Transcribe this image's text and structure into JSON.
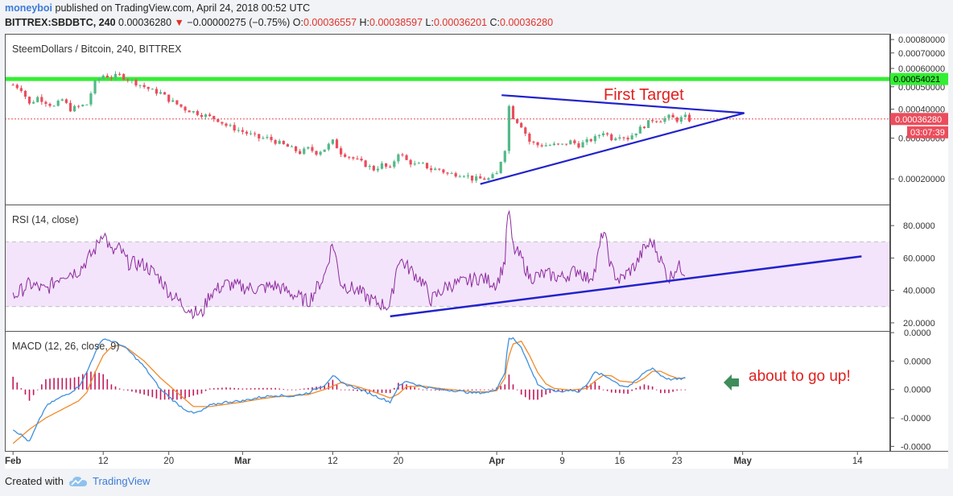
{
  "header": {
    "author": "moneyboi",
    "published_text": "published on TradingView.com, April 24, 2018 00:52 UTC",
    "symbol": "BITTREX:SBDBTC, 240",
    "price": "0.00036280",
    "change_arrow": "▼",
    "change": "−0.00000275 (−0.75%)",
    "o_label": "O:",
    "o_value": "0.00036557",
    "h_label": "H:",
    "h_value": "0.00038597",
    "l_label": "L:",
    "l_value": "0.00036201",
    "c_label": "C:",
    "c_value": "0.00036280"
  },
  "footer": {
    "created_with": "Created with",
    "brand": "TradingView"
  },
  "colors": {
    "up": "#53b987",
    "down": "#eb4d5c",
    "green_line": "#33ee33",
    "trend": "#2222cc",
    "rsi": "#8e2a9e",
    "rsi_band": "#f3e4fb",
    "macd": "#3f8fde",
    "signal": "#f28a28",
    "hist": "#c2185b",
    "annotation": "#e0201e",
    "arrow": "#3e8d5a"
  },
  "chart_data": [
    {
      "type": "candlestick",
      "title": "SteemDollars / Bitcoin, 240, BITTREX",
      "y_ticks": [
        "0.00080000",
        "0.00070000",
        "0.00060000",
        "0.00050000",
        "0.00040000",
        "0.00030000",
        "0.00020000"
      ],
      "ylim": [
        0.00016,
        0.00082
      ],
      "scale": "log",
      "x_ticks": [
        "Feb",
        "12",
        "20",
        "Mar",
        "12",
        "20",
        "Apr",
        "9",
        "16",
        "23",
        "May",
        "14"
      ],
      "x_tick_days": [
        0,
        11,
        19,
        28,
        39,
        47,
        59,
        67,
        74,
        81,
        89,
        103
      ],
      "xlim": [
        -1,
        107
      ],
      "last_day": 82.5,
      "close_anchors": [
        [
          0,
          0.00051
        ],
        [
          1,
          0.00049
        ],
        [
          2,
          0.00042
        ],
        [
          3,
          0.00045
        ],
        [
          4,
          0.00043
        ],
        [
          5,
          0.00041
        ],
        [
          6,
          0.00044
        ],
        [
          7,
          0.0004
        ],
        [
          8,
          0.00041
        ],
        [
          9,
          0.00042
        ],
        [
          10,
          0.00052
        ],
        [
          11,
          0.00056
        ],
        [
          12,
          0.00055
        ],
        [
          13,
          0.00056
        ],
        [
          14,
          0.00054
        ],
        [
          15,
          0.00052
        ],
        [
          16,
          0.0005
        ],
        [
          17,
          0.00048
        ],
        [
          18,
          0.00047
        ],
        [
          19,
          0.00044
        ],
        [
          20,
          0.00042
        ],
        [
          21,
          0.0004
        ],
        [
          22,
          0.00039
        ],
        [
          23,
          0.00038
        ],
        [
          24,
          0.00037
        ],
        [
          25,
          0.00036
        ],
        [
          26,
          0.00034
        ],
        [
          27,
          0.00033
        ],
        [
          28,
          0.00032
        ],
        [
          29,
          0.00031
        ],
        [
          30,
          0.0003
        ],
        [
          31,
          0.0003
        ],
        [
          32,
          0.00029
        ],
        [
          33,
          0.00028
        ],
        [
          34,
          0.00027
        ],
        [
          35,
          0.00026
        ],
        [
          36,
          0.00027
        ],
        [
          37,
          0.00026
        ],
        [
          38,
          0.00027
        ],
        [
          39,
          0.00029
        ],
        [
          40,
          0.00026
        ],
        [
          41,
          0.00025
        ],
        [
          42,
          0.00024
        ],
        [
          43,
          0.00023
        ],
        [
          44,
          0.00022
        ],
        [
          45,
          0.00023
        ],
        [
          46,
          0.00022
        ],
        [
          47,
          0.00026
        ],
        [
          48,
          0.00024
        ],
        [
          49,
          0.00023
        ],
        [
          50,
          0.00023
        ],
        [
          51,
          0.00022
        ],
        [
          52,
          0.00022
        ],
        [
          53,
          0.00021
        ],
        [
          54,
          0.00021
        ],
        [
          55,
          0.00021
        ],
        [
          56,
          0.0002
        ],
        [
          57,
          0.0002
        ],
        [
          58,
          0.0002
        ],
        [
          59,
          0.00021
        ],
        [
          60,
          0.00027
        ],
        [
          60.4,
          0.00042
        ],
        [
          61,
          0.00037
        ],
        [
          62,
          0.00034
        ],
        [
          63,
          0.00029
        ],
        [
          64,
          0.00028
        ],
        [
          65,
          0.00028
        ],
        [
          66,
          0.00028
        ],
        [
          67,
          0.00028
        ],
        [
          68,
          0.00029
        ],
        [
          69,
          0.00028
        ],
        [
          70,
          0.00029
        ],
        [
          71,
          0.0003
        ],
        [
          72,
          0.00032
        ],
        [
          73,
          0.0003
        ],
        [
          74,
          0.00031
        ],
        [
          75,
          0.0003
        ],
        [
          76,
          0.00032
        ],
        [
          77,
          0.00034
        ],
        [
          78,
          0.00036
        ],
        [
          79,
          0.00036
        ],
        [
          80,
          0.00037
        ],
        [
          81,
          0.00036
        ],
        [
          82,
          0.00037
        ],
        [
          82.5,
          0.00036
        ]
      ],
      "lines": [
        {
          "label": "0.00054021",
          "value": 0.00054021
        },
        {
          "label": "0.00036280",
          "value": 0.0003628
        }
      ],
      "countdown": "03:07:39",
      "annotation": "First Target",
      "trendlines": [
        {
          "from": [
            59.6,
            0.00046
          ],
          "to": [
            89.2,
            0.000385
          ]
        },
        {
          "from": [
            57.0,
            0.00019
          ],
          "to": [
            89.2,
            0.000385
          ]
        }
      ]
    },
    {
      "type": "line",
      "title": "RSI (14, close)",
      "y_ticks": [
        "80.0000",
        "60.0000",
        "40.0000",
        "20.0000"
      ],
      "ylim": [
        15,
        93
      ],
      "band": [
        30,
        70
      ],
      "anchors": [
        [
          0,
          36
        ],
        [
          2,
          44
        ],
        [
          4,
          40
        ],
        [
          6,
          50
        ],
        [
          8,
          52
        ],
        [
          10,
          65
        ],
        [
          11,
          77
        ],
        [
          12,
          63
        ],
        [
          13,
          66
        ],
        [
          14,
          57
        ],
        [
          16,
          56
        ],
        [
          18,
          47
        ],
        [
          19,
          39
        ],
        [
          21,
          30
        ],
        [
          22,
          27
        ],
        [
          23,
          25
        ],
        [
          24,
          38
        ],
        [
          26,
          44
        ],
        [
          28,
          42
        ],
        [
          30,
          41
        ],
        [
          32,
          43
        ],
        [
          34,
          38
        ],
        [
          36,
          33
        ],
        [
          38,
          49
        ],
        [
          39,
          70
        ],
        [
          40,
          44
        ],
        [
          42,
          40
        ],
        [
          44,
          33
        ],
        [
          46,
          30
        ],
        [
          47,
          60
        ],
        [
          48,
          55
        ],
        [
          50,
          45
        ],
        [
          51,
          34
        ],
        [
          53,
          43
        ],
        [
          55,
          45
        ],
        [
          57,
          48
        ],
        [
          59,
          44
        ],
        [
          60,
          58
        ],
        [
          60.4,
          92
        ],
        [
          61,
          66
        ],
        [
          62,
          60
        ],
        [
          63,
          48
        ],
        [
          65,
          50
        ],
        [
          67,
          48
        ],
        [
          69,
          53
        ],
        [
          70,
          47
        ],
        [
          71,
          52
        ],
        [
          72,
          78
        ],
        [
          73,
          53
        ],
        [
          74,
          46
        ],
        [
          76,
          56
        ],
        [
          77,
          66
        ],
        [
          78,
          70
        ],
        [
          79,
          59
        ],
        [
          80,
          47
        ],
        [
          81,
          55
        ],
        [
          82,
          52
        ]
      ],
      "trendline": {
        "from": [
          46.0,
          24
        ],
        "to": [
          103.5,
          61
        ]
      }
    },
    {
      "type": "line",
      "title": "MACD (12, 26, close, 9)",
      "y_ticks": [
        "0.0000",
        "0.0000",
        "0.0000",
        "-0.0000",
        "-0.0000"
      ],
      "ylim": [
        -1.08,
        1.03
      ],
      "macd_anchors": [
        [
          0,
          -0.7
        ],
        [
          1,
          -0.8
        ],
        [
          2,
          -0.92
        ],
        [
          3,
          -0.6
        ],
        [
          4,
          -0.3
        ],
        [
          5,
          -0.2
        ],
        [
          7,
          -0.05
        ],
        [
          8,
          0.05
        ],
        [
          9,
          0.3
        ],
        [
          10,
          0.65
        ],
        [
          11,
          0.9
        ],
        [
          12,
          0.85
        ],
        [
          13,
          0.8
        ],
        [
          14,
          0.7
        ],
        [
          15,
          0.55
        ],
        [
          16,
          0.4
        ],
        [
          17,
          0.2
        ],
        [
          18,
          0.0
        ],
        [
          19,
          -0.12
        ],
        [
          20,
          -0.25
        ],
        [
          21,
          -0.35
        ],
        [
          22,
          -0.42
        ],
        [
          23,
          -0.38
        ],
        [
          24,
          -0.28
        ],
        [
          26,
          -0.22
        ],
        [
          28,
          -0.2
        ],
        [
          30,
          -0.14
        ],
        [
          32,
          -0.1
        ],
        [
          34,
          -0.12
        ],
        [
          36,
          -0.06
        ],
        [
          38,
          0.08
        ],
        [
          39,
          0.25
        ],
        [
          40,
          0.12
        ],
        [
          42,
          0.02
        ],
        [
          44,
          -0.1
        ],
        [
          46,
          -0.22
        ],
        [
          47,
          0.05
        ],
        [
          48,
          0.15
        ],
        [
          50,
          0.05
        ],
        [
          52,
          0.0
        ],
        [
          54,
          -0.02
        ],
        [
          56,
          -0.06
        ],
        [
          58,
          -0.05
        ],
        [
          59,
          0.02
        ],
        [
          60,
          0.3
        ],
        [
          60.4,
          0.88
        ],
        [
          61,
          0.9
        ],
        [
          62,
          0.75
        ],
        [
          63,
          0.4
        ],
        [
          64,
          0.1
        ],
        [
          65,
          0.0
        ],
        [
          66,
          -0.02
        ],
        [
          67,
          -0.04
        ],
        [
          68,
          0.0
        ],
        [
          69,
          -0.05
        ],
        [
          70,
          0.1
        ],
        [
          71,
          0.3
        ],
        [
          72,
          0.25
        ],
        [
          73,
          0.18
        ],
        [
          74,
          0.08
        ],
        [
          75,
          0.05
        ],
        [
          76,
          0.15
        ],
        [
          77,
          0.3
        ],
        [
          78,
          0.38
        ],
        [
          79,
          0.25
        ],
        [
          80,
          0.18
        ],
        [
          81,
          0.18
        ],
        [
          82,
          0.2
        ]
      ],
      "signal_anchors": [
        [
          0,
          -0.95
        ],
        [
          2,
          -0.7
        ],
        [
          4,
          -0.5
        ],
        [
          6,
          -0.35
        ],
        [
          8,
          -0.2
        ],
        [
          9,
          -0.05
        ],
        [
          10,
          0.3
        ],
        [
          11,
          0.6
        ],
        [
          12,
          0.75
        ],
        [
          13,
          0.78
        ],
        [
          14,
          0.72
        ],
        [
          16,
          0.5
        ],
        [
          18,
          0.2
        ],
        [
          20,
          -0.05
        ],
        [
          22,
          -0.3
        ],
        [
          24,
          -0.3
        ],
        [
          26,
          -0.26
        ],
        [
          28,
          -0.22
        ],
        [
          30,
          -0.17
        ],
        [
          32,
          -0.13
        ],
        [
          34,
          -0.11
        ],
        [
          36,
          -0.09
        ],
        [
          38,
          0.0
        ],
        [
          40,
          0.12
        ],
        [
          42,
          0.05
        ],
        [
          44,
          -0.04
        ],
        [
          46,
          -0.15
        ],
        [
          47,
          -0.08
        ],
        [
          48,
          0.05
        ],
        [
          50,
          0.06
        ],
        [
          52,
          0.02
        ],
        [
          54,
          -0.01
        ],
        [
          56,
          -0.04
        ],
        [
          58,
          -0.04
        ],
        [
          59,
          -0.02
        ],
        [
          60,
          0.2
        ],
        [
          60.4,
          0.55
        ],
        [
          61,
          0.8
        ],
        [
          62,
          0.85
        ],
        [
          63,
          0.6
        ],
        [
          64,
          0.3
        ],
        [
          65,
          0.1
        ],
        [
          66,
          0.02
        ],
        [
          68,
          -0.01
        ],
        [
          70,
          0.02
        ],
        [
          71,
          0.15
        ],
        [
          72,
          0.25
        ],
        [
          73,
          0.24
        ],
        [
          74,
          0.15
        ],
        [
          76,
          0.12
        ],
        [
          77,
          0.2
        ],
        [
          78,
          0.32
        ],
        [
          79,
          0.32
        ],
        [
          80,
          0.25
        ],
        [
          81,
          0.2
        ],
        [
          82,
          0.2
        ]
      ],
      "annotation": "about to go up!"
    }
  ]
}
